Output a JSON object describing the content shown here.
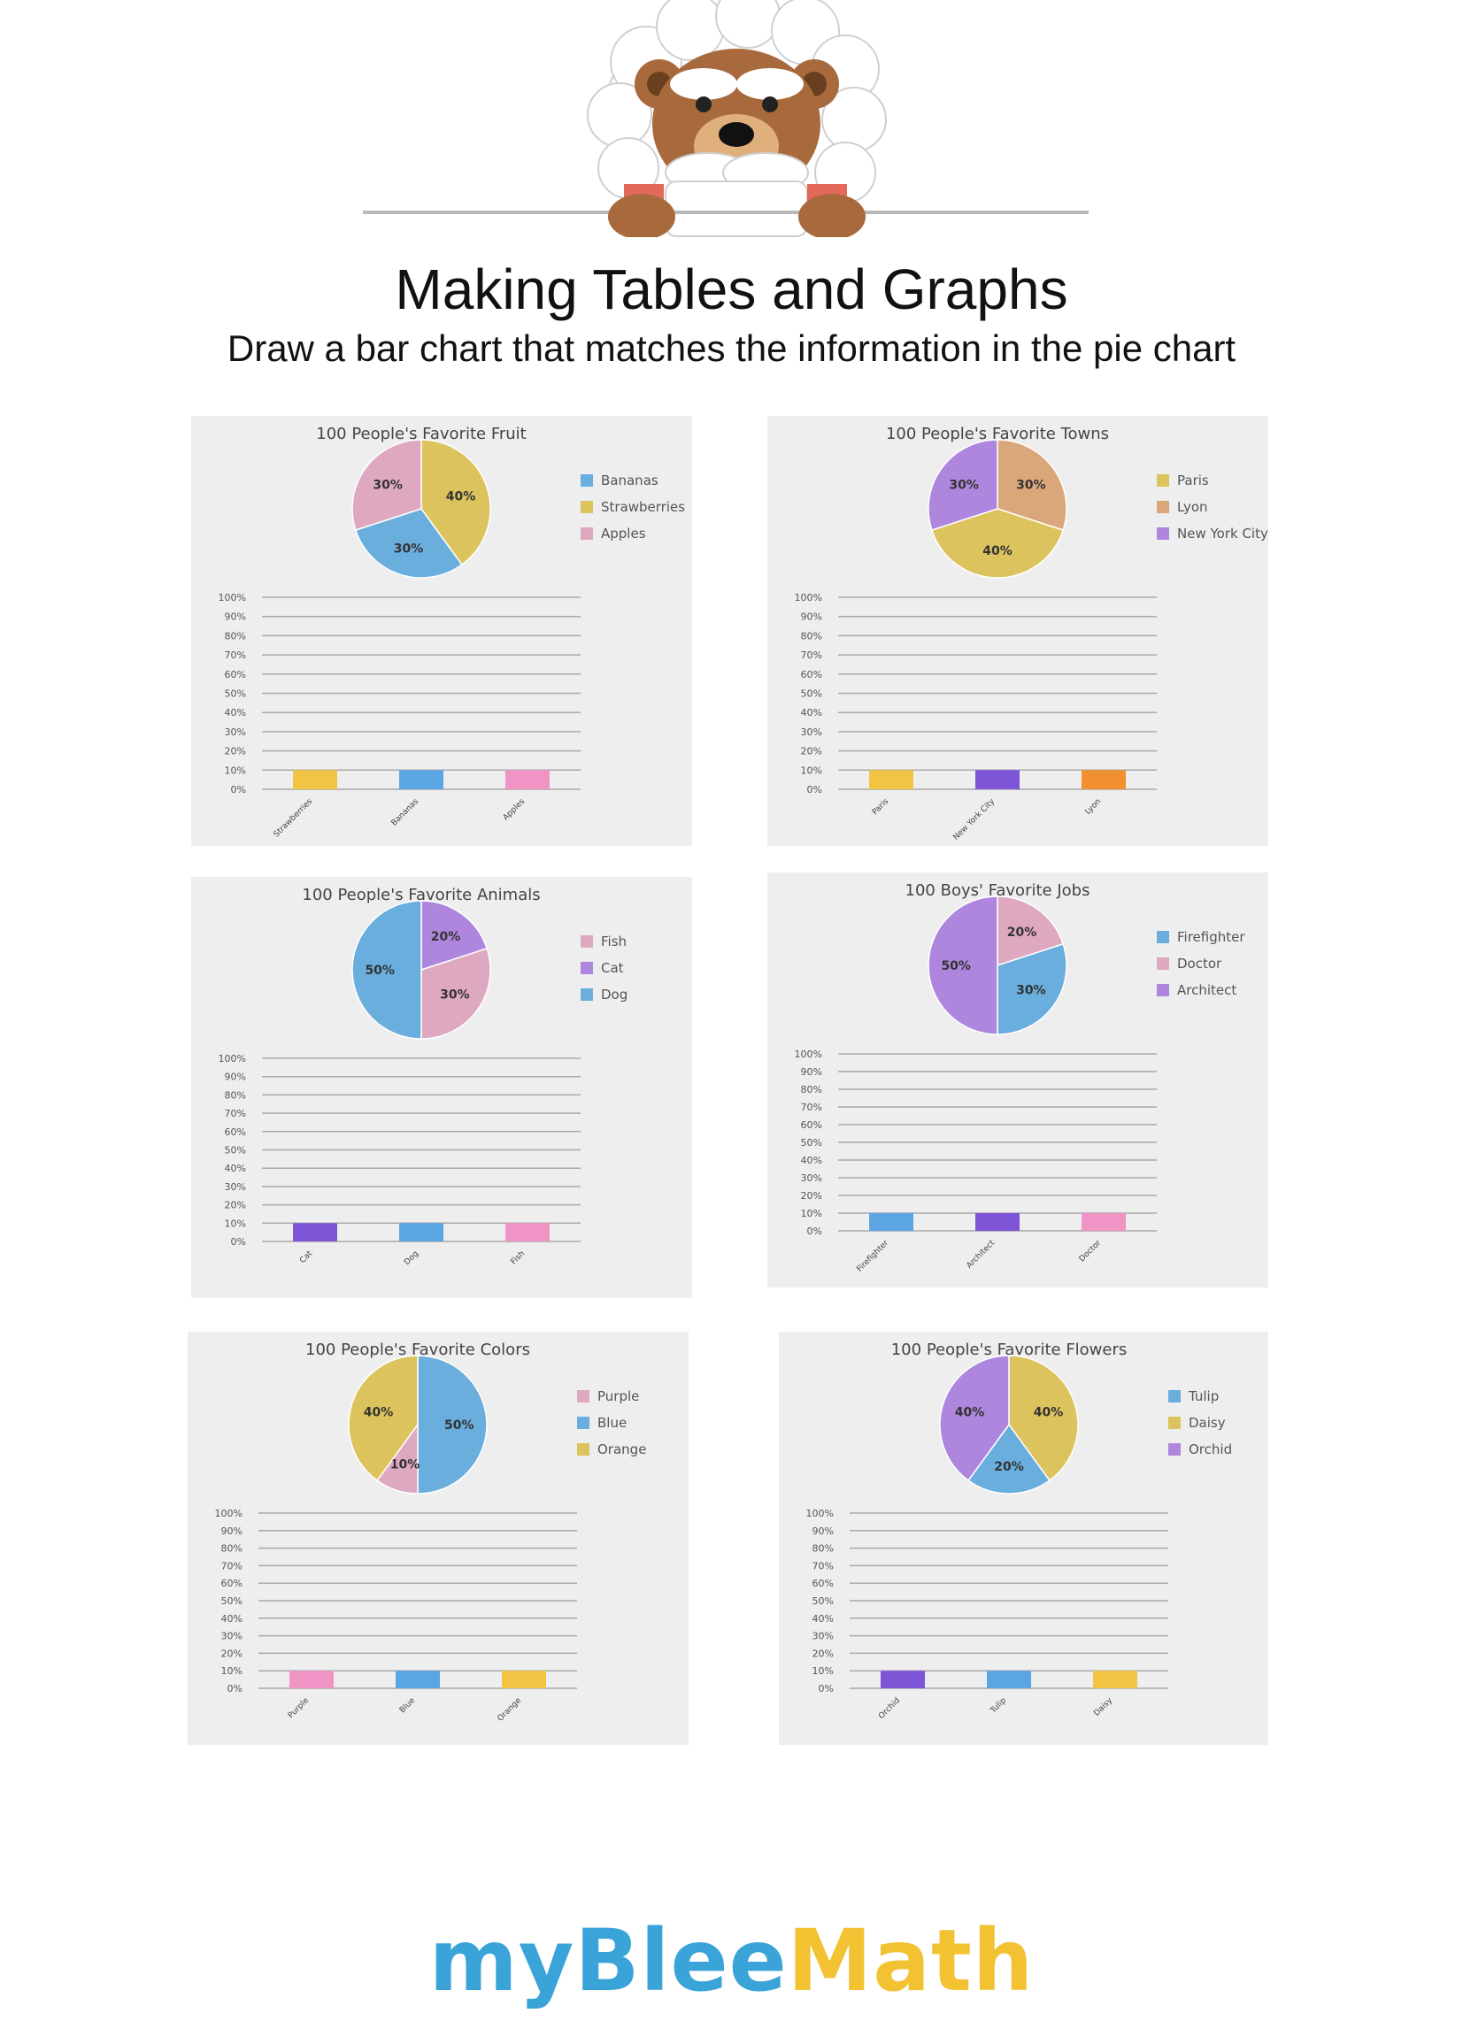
{
  "header": {
    "title": "Making Tables and Graphs",
    "subtitle": "Draw a bar chart that matches the information in the pie chart"
  },
  "brand": {
    "part1": "myBlee",
    "part2": "Math",
    "color1": "#3aa3d8",
    "color2": "#f2c232"
  },
  "mascot_icon": "bear-mascot-icon",
  "chart_data": [
    {
      "type": "pie",
      "title": "100 People's Favorite Fruit",
      "legend_position": "right",
      "slices": [
        {
          "name": "Bananas",
          "value": 30,
          "label": "30%",
          "color": "#6aaede"
        },
        {
          "name": "Strawberries",
          "value": 40,
          "label": "40%",
          "color": "#dcc35e"
        },
        {
          "name": "Apples",
          "value": 30,
          "label": "30%",
          "color": "#dfa8c1"
        }
      ],
      "bar_chart": {
        "type": "bar",
        "y_ticks": [
          "100%",
          "90%",
          "80%",
          "70%",
          "60%",
          "50%",
          "40%",
          "30%",
          "20%",
          "10%",
          "0%"
        ],
        "ylim": [
          0,
          100
        ],
        "categories": [
          "Strawberries",
          "Bananas",
          "Apples"
        ],
        "values": [
          10,
          10,
          10
        ],
        "colors": [
          "#f3c444",
          "#5ba5e3",
          "#ef94c4"
        ]
      }
    },
    {
      "type": "pie",
      "title": "100 People's Favorite Towns",
      "legend_position": "right",
      "slices": [
        {
          "name": "Paris",
          "value": 40,
          "label": "40%",
          "color": "#dcc35e"
        },
        {
          "name": "Lyon",
          "value": 30,
          "label": "30%",
          "color": "#daa77a"
        },
        {
          "name": "New York City",
          "value": 30,
          "label": "30%",
          "color": "#ae86dd"
        }
      ],
      "bar_chart": {
        "type": "bar",
        "y_ticks": [
          "100%",
          "90%",
          "80%",
          "70%",
          "60%",
          "50%",
          "40%",
          "30%",
          "20%",
          "10%",
          "0%"
        ],
        "ylim": [
          0,
          100
        ],
        "categories": [
          "Paris",
          "New York City",
          "Lyon"
        ],
        "values": [
          10,
          10,
          10
        ],
        "colors": [
          "#f3c444",
          "#7f55d8",
          "#f0902e"
        ]
      }
    },
    {
      "type": "pie",
      "title": "100 People's Favorite Animals",
      "legend_position": "right",
      "slices": [
        {
          "name": "Fish",
          "value": 30,
          "label": "30%",
          "color": "#dfa8c1"
        },
        {
          "name": "Cat",
          "value": 20,
          "label": "20%",
          "color": "#ae86dd"
        },
        {
          "name": "Dog",
          "value": 50,
          "label": "50%",
          "color": "#6aaede"
        }
      ],
      "bar_chart": {
        "type": "bar",
        "y_ticks": [
          "100%",
          "90%",
          "80%",
          "70%",
          "60%",
          "50%",
          "40%",
          "30%",
          "20%",
          "10%",
          "0%"
        ],
        "ylim": [
          0,
          100
        ],
        "categories": [
          "Cat",
          "Dog",
          "Fish"
        ],
        "values": [
          10,
          10,
          10
        ],
        "colors": [
          "#7f55d8",
          "#5ba5e3",
          "#ef94c4"
        ]
      }
    },
    {
      "type": "pie",
      "title": "100 Boys' Favorite Jobs",
      "legend_position": "right",
      "slices": [
        {
          "name": "Firefighter",
          "value": 30,
          "label": "30%",
          "color": "#6aaede"
        },
        {
          "name": "Doctor",
          "value": 20,
          "label": "20%",
          "color": "#dfa8c1"
        },
        {
          "name": "Architect",
          "value": 50,
          "label": "50%",
          "color": "#ae86dd"
        }
      ],
      "bar_chart": {
        "type": "bar",
        "y_ticks": [
          "100%",
          "90%",
          "80%",
          "70%",
          "60%",
          "50%",
          "40%",
          "30%",
          "20%",
          "10%",
          "0%"
        ],
        "ylim": [
          0,
          100
        ],
        "categories": [
          "Firefighter",
          "Architect",
          "Doctor"
        ],
        "values": [
          10,
          10,
          10
        ],
        "colors": [
          "#5ba5e3",
          "#7f55d8",
          "#ef94c4"
        ]
      }
    },
    {
      "type": "pie",
      "title": "100 People's Favorite Colors",
      "legend_position": "right",
      "slices": [
        {
          "name": "Purple",
          "value": 10,
          "label": "10%",
          "color": "#dfa8c1"
        },
        {
          "name": "Blue",
          "value": 50,
          "label": "50%",
          "color": "#6aaede"
        },
        {
          "name": "Orange",
          "value": 40,
          "label": "40%",
          "color": "#dcc35e"
        }
      ],
      "bar_chart": {
        "type": "bar",
        "y_ticks": [
          "100%",
          "90%",
          "80%",
          "70%",
          "60%",
          "50%",
          "40%",
          "30%",
          "20%",
          "10%",
          "0%"
        ],
        "ylim": [
          0,
          100
        ],
        "categories": [
          "Purple",
          "Blue",
          "Orange"
        ],
        "values": [
          10,
          10,
          10
        ],
        "colors": [
          "#ef94c4",
          "#5ba5e3",
          "#f3c444"
        ]
      }
    },
    {
      "type": "pie",
      "title": "100 People's Favorite Flowers",
      "legend_position": "right",
      "slices": [
        {
          "name": "Tulip",
          "value": 20,
          "label": "20%",
          "color": "#6aaede"
        },
        {
          "name": "Daisy",
          "value": 40,
          "label": "40%",
          "color": "#dcc35e"
        },
        {
          "name": "Orchid",
          "value": 40,
          "label": "40%",
          "color": "#ae86dd"
        }
      ],
      "bar_chart": {
        "type": "bar",
        "y_ticks": [
          "100%",
          "90%",
          "80%",
          "70%",
          "60%",
          "50%",
          "40%",
          "30%",
          "20%",
          "10%",
          "0%"
        ],
        "ylim": [
          0,
          100
        ],
        "categories": [
          "Orchid",
          "Tulip",
          "Daisy"
        ],
        "values": [
          10,
          10,
          10
        ],
        "colors": [
          "#7f55d8",
          "#5ba5e3",
          "#f3c444"
        ]
      }
    }
  ]
}
